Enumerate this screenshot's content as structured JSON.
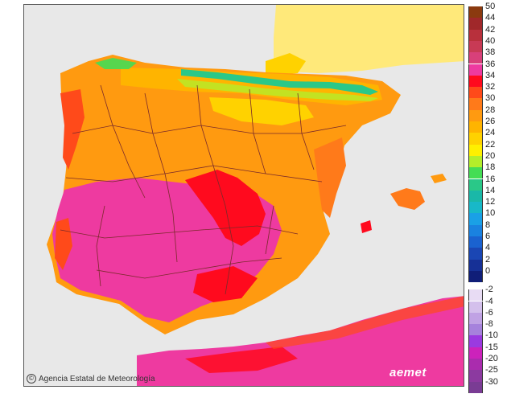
{
  "credit": {
    "symbol": "©",
    "text": "Agencia Estatal de Meteorología"
  },
  "logo": {
    "text": "aemet"
  },
  "legend": {
    "positive": [
      {
        "label": "50",
        "color": "#8b3a0f"
      },
      {
        "label": "44",
        "color": "#a0282a"
      },
      {
        "label": "42",
        "color": "#b8303c"
      },
      {
        "label": "40",
        "color": "#c83a55"
      },
      {
        "label": "38",
        "color": "#d8407a"
      },
      {
        "label": "36",
        "color": "#ee3aa0"
      },
      {
        "label": "34",
        "color": "#ff0a1e"
      },
      {
        "label": "32",
        "color": "#ff4a1a"
      },
      {
        "label": "30",
        "color": "#ff7a1a"
      },
      {
        "label": "28",
        "color": "#ff9a10"
      },
      {
        "label": "26",
        "color": "#ffb400"
      },
      {
        "label": "24",
        "color": "#ffd200"
      },
      {
        "label": "22",
        "color": "#fff000"
      },
      {
        "label": "20",
        "color": "#b4ee2a"
      },
      {
        "label": "18",
        "color": "#44dd55"
      },
      {
        "label": "16",
        "color": "#2ac888"
      },
      {
        "label": "14",
        "color": "#1ab8a8"
      },
      {
        "label": "12",
        "color": "#18b8c8"
      },
      {
        "label": "10",
        "color": "#1aa0e6"
      },
      {
        "label": "8",
        "color": "#1a82e0"
      },
      {
        "label": "6",
        "color": "#1a62d0"
      },
      {
        "label": "4",
        "color": "#1a46b4"
      },
      {
        "label": "2",
        "color": "#163096"
      },
      {
        "label": "0",
        "color": "#101e78"
      }
    ],
    "negative": [
      {
        "label": "-2",
        "color": "#e8dcf4"
      },
      {
        "label": "-4",
        "color": "#d4c0ec"
      },
      {
        "label": "-6",
        "color": "#c0a2e4"
      },
      {
        "label": "-8",
        "color": "#a682dc"
      },
      {
        "label": "-10",
        "color": "#9a3ae0"
      },
      {
        "label": "-15",
        "color": "#cc22bb"
      },
      {
        "label": "-20",
        "color": "#aa2cae"
      },
      {
        "label": "-25",
        "color": "#8c3aa0"
      },
      {
        "label": "-30",
        "color": "#7a3c94"
      }
    ]
  },
  "colors": {
    "sea": "#e8e8e8",
    "france": "#ffe97a",
    "hot_pink": "#ee3aa0",
    "hot_red": "#ff0a1e",
    "orange": "#ff9a10",
    "light_orange": "#ffb400",
    "yellow": "#ffd200",
    "green": "#44dd55",
    "border": "#7a2a2a"
  }
}
